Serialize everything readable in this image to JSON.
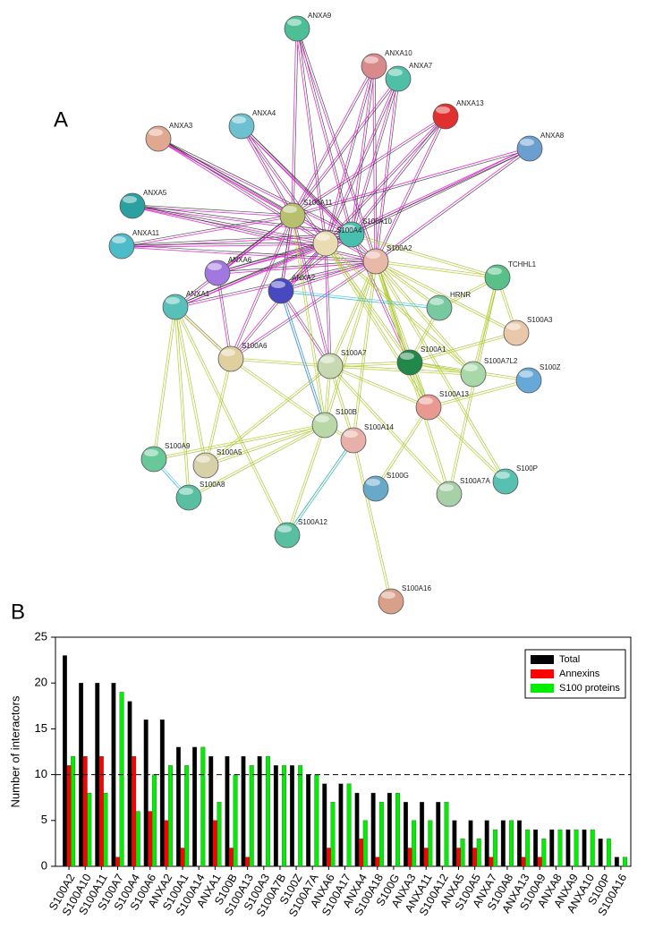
{
  "panel_a": {
    "label": "A",
    "nodes": [
      {
        "label": "ANXA9"
      },
      {
        "label": "ANXA10"
      },
      {
        "label": "ANXA7"
      },
      {
        "label": "ANXA13"
      },
      {
        "label": "ANXA8"
      },
      {
        "label": "ANXA3"
      },
      {
        "label": "ANXA4"
      },
      {
        "label": "ANXA5"
      },
      {
        "label": "S100A11"
      },
      {
        "label": "S100A10"
      },
      {
        "label": "S100A4"
      },
      {
        "label": "ANXA11"
      },
      {
        "label": "S100A2"
      },
      {
        "label": "TCHHL1"
      },
      {
        "label": "ANXA6"
      },
      {
        "label": "ANXA2"
      },
      {
        "label": "ANXA1"
      },
      {
        "label": "HRNR"
      },
      {
        "label": "S100A3"
      },
      {
        "label": "S100A6"
      },
      {
        "label": "S100A7"
      },
      {
        "label": "S100A1"
      },
      {
        "label": "S100A7L2"
      },
      {
        "label": "S100Z"
      },
      {
        "label": "S100A13"
      },
      {
        "label": "S100B"
      },
      {
        "label": "S100A14"
      },
      {
        "label": "S100A9"
      },
      {
        "label": "S100A5"
      },
      {
        "label": "S100A8"
      },
      {
        "label": "S100P"
      },
      {
        "label": "S100G"
      },
      {
        "label": "S100A7A"
      },
      {
        "label": "S100A12"
      },
      {
        "label": "S100A16"
      }
    ]
  },
  "chart_data": {
    "type": "bar",
    "panel_label": "B",
    "ylabel": "Number of interactors",
    "categories": [
      "S100A2",
      "S100A10",
      "S100A11",
      "S100A7",
      "S100A4",
      "S100A6",
      "ANXA2",
      "S100A1",
      "S100A14",
      "ANXA1",
      "S100B",
      "S100A13",
      "S100A3",
      "S100A7B",
      "S100Z",
      "S100A7A",
      "ANXA6",
      "S100A17",
      "ANXA4",
      "S100A18",
      "S100G",
      "ANXA3",
      "ANXA11",
      "S100A12",
      "ANXA5",
      "S100A5",
      "ANXA7",
      "S100A8",
      "ANXA13",
      "S100A9",
      "ANXA8",
      "ANXA9",
      "ANXA10",
      "S100P",
      "S100A16"
    ],
    "series": [
      {
        "name": "Total",
        "color": "#000000",
        "values": [
          23,
          20,
          20,
          20,
          18,
          16,
          16,
          13,
          13,
          12,
          12,
          12,
          12,
          11,
          11,
          10,
          9,
          9,
          8,
          8,
          8,
          7,
          7,
          7,
          5,
          5,
          5,
          5,
          5,
          4,
          4,
          4,
          4,
          3,
          1
        ]
      },
      {
        "name": "Annexins",
        "color": "#ff0000",
        "values": [
          11,
          12,
          12,
          1,
          12,
          6,
          5,
          2,
          0,
          5,
          2,
          1,
          0,
          0,
          0,
          0,
          2,
          0,
          3,
          1,
          0,
          2,
          2,
          0,
          2,
          2,
          1,
          0,
          1,
          1,
          0,
          0,
          0,
          0,
          0
        ]
      },
      {
        "name": "S100 proteins",
        "color": "#00ee00",
        "values": [
          12,
          8,
          8,
          19,
          6,
          10,
          11,
          11,
          13,
          7,
          10,
          11,
          12,
          11,
          11,
          10,
          7,
          9,
          5,
          7,
          8,
          5,
          5,
          7,
          3,
          3,
          4,
          5,
          4,
          3,
          4,
          4,
          4,
          3,
          1
        ]
      }
    ],
    "ylim": [
      0,
      25
    ],
    "yticks": [
      0,
      5,
      10,
      15,
      20,
      25
    ],
    "reference_line": 10,
    "legend": "upper right"
  }
}
